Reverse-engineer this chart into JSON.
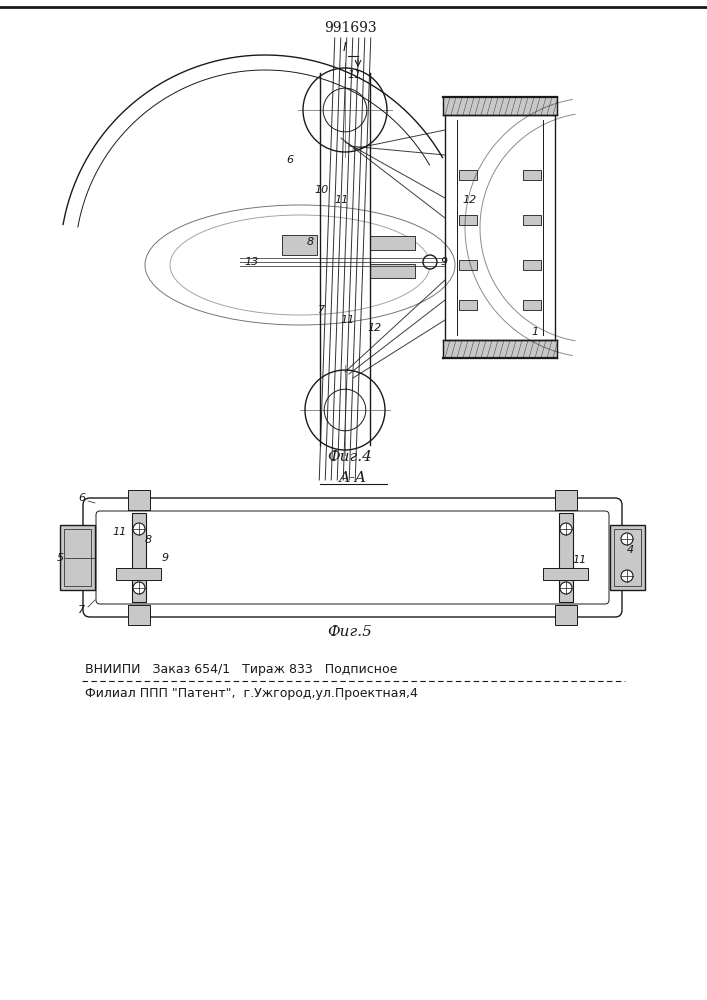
{
  "patent_number": "991693",
  "fig4_label": "Фиг.4",
  "fig5_label": "Фиг.5",
  "section_label": "А-А",
  "footer_line1": "ВНИИПИ   Заказ 654/1   Тираж 833   Подписное",
  "footer_line2": "Филиал ППП \"Патент\",  г.Ужгород,ул.Проектная,4",
  "bg_color": "#ffffff",
  "line_color": "#1a1a1a",
  "gray_light": "#c8c8c8",
  "gray_hatch": "#b0b0b0"
}
